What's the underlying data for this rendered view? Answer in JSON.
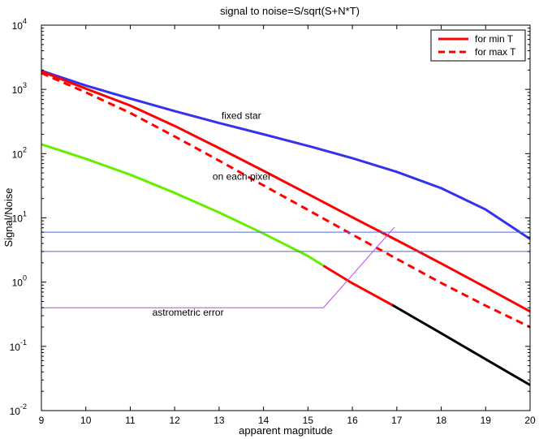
{
  "chart_data": {
    "type": "line",
    "title": "signal to noise=S/sqrt(S+N*T)",
    "xlabel": "apparent magnitude",
    "ylabel": "Signal/Noise",
    "xlim": [
      9,
      20
    ],
    "ylim": [
      0.01,
      10000
    ],
    "yscale": "log",
    "grid": false,
    "legend_position": "top-right",
    "x_ticks": [
      9,
      10,
      11,
      12,
      13,
      14,
      15,
      16,
      17,
      18,
      19,
      20
    ],
    "y_ticks": [
      {
        "value": 0.01,
        "base": "10",
        "exp": "-2"
      },
      {
        "value": 0.1,
        "base": "10",
        "exp": "-1"
      },
      {
        "value": 1,
        "base": "10",
        "exp": "0"
      },
      {
        "value": 10,
        "base": "10",
        "exp": "1"
      },
      {
        "value": 100,
        "base": "10",
        "exp": "2"
      },
      {
        "value": 1000,
        "base": "10",
        "exp": "3"
      },
      {
        "value": 10000,
        "base": "10",
        "exp": "4"
      }
    ],
    "legend": [
      {
        "label": "for min T",
        "color": "#ff0000",
        "dash": false
      },
      {
        "label": "for max T",
        "color": "#ff0000",
        "dash": true
      }
    ],
    "series": [
      {
        "key": "fixed_star",
        "color": "#3333ee",
        "width": 3,
        "dash": false,
        "x": [
          9,
          10,
          11,
          12,
          13,
          14,
          15,
          16,
          17,
          18,
          19,
          20
        ],
        "y": [
          1950,
          1150,
          720,
          460,
          300,
          200,
          132,
          85,
          52,
          29,
          13.5,
          4.7
        ]
      },
      {
        "key": "min_t",
        "color": "#ff0000",
        "width": 3,
        "dash": false,
        "x": [
          9,
          10,
          11,
          12,
          13,
          14,
          15,
          16,
          17,
          18,
          19,
          20
        ],
        "y": [
          1900,
          1030,
          560,
          270,
          122,
          54,
          23.5,
          10.2,
          4.5,
          1.95,
          0.83,
          0.35
        ]
      },
      {
        "key": "max_t",
        "color": "#ff0000",
        "width": 3,
        "dash": true,
        "x": [
          9,
          10,
          11,
          12,
          13,
          14,
          15,
          16,
          17,
          18,
          19,
          20
        ],
        "y": [
          1800,
          900,
          430,
          185,
          78,
          32,
          13.3,
          5.5,
          2.3,
          0.97,
          0.43,
          0.2
        ]
      },
      {
        "key": "pixel_green",
        "color": "#66ee00",
        "width": 3,
        "dash": false,
        "x": [
          9,
          10,
          11,
          12,
          13,
          14,
          15,
          15.35
        ],
        "y": [
          140,
          83,
          47,
          24.5,
          12.1,
          5.7,
          2.55,
          1.8
        ]
      },
      {
        "key": "pixel_red",
        "color": "#ff0000",
        "width": 3,
        "dash": false,
        "x": [
          15.35,
          16,
          16.9
        ],
        "y": [
          1.8,
          0.96,
          0.44
        ]
      },
      {
        "key": "pixel_black",
        "color": "#000000",
        "width": 3,
        "dash": false,
        "x": [
          16.9,
          18,
          19,
          20
        ],
        "y": [
          0.44,
          0.16,
          0.063,
          0.025
        ]
      },
      {
        "key": "hline_upper",
        "color": "#5566dd",
        "width": 1,
        "dash": false,
        "x": [
          9,
          20
        ],
        "y": [
          6,
          6
        ]
      },
      {
        "key": "hline_lower",
        "color": "#5566dd",
        "width": 1,
        "dash": false,
        "x": [
          9,
          20
        ],
        "y": [
          3,
          3
        ]
      },
      {
        "key": "astrometric",
        "color": "#bb44ee",
        "width": 1,
        "dash": false,
        "x": [
          9,
          15.35,
          16.95
        ],
        "y": [
          0.4,
          0.4,
          7.2
        ]
      }
    ],
    "annotations": [
      {
        "key": "fixed_star",
        "text": "fixed star",
        "x": 13.5,
        "y": 350
      },
      {
        "key": "each_pixel",
        "text": "on each pixel",
        "x": 13.5,
        "y": 39
      },
      {
        "key": "astrometric",
        "text": "astrometric error",
        "x": 12.3,
        "y": 0.3
      }
    ]
  }
}
